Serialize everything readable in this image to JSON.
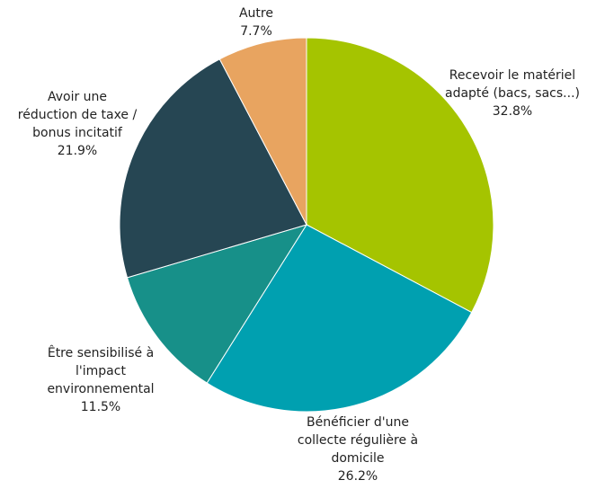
{
  "chart_data": {
    "type": "pie",
    "title": "",
    "start_angle_deg": 0,
    "direction": "clockwise",
    "slices": [
      {
        "lines": [
          "Recevoir le matériel",
          "adapté (bacs, sacs...)"
        ],
        "value": 32.8,
        "value_label": "32.8%",
        "color": "#a5c400"
      },
      {
        "lines": [
          "Bénéficier d'une",
          "collecte régulière à",
          "domicile"
        ],
        "value": 26.2,
        "value_label": "26.2%",
        "color": "#00a0b0"
      },
      {
        "lines": [
          "Être sensibilisé à",
          "l'impact",
          "environnemental"
        ],
        "value": 11.5,
        "value_label": "11.5%",
        "color": "#179089"
      },
      {
        "lines": [
          "Avoir une",
          "réduction de taxe /",
          "bonus incitatif"
        ],
        "value": 21.9,
        "value_label": "21.9%",
        "color": "#264653"
      },
      {
        "lines": [
          "Autre"
        ],
        "value": 7.7,
        "value_label": "7.7%",
        "color": "#e8a460"
      }
    ]
  }
}
